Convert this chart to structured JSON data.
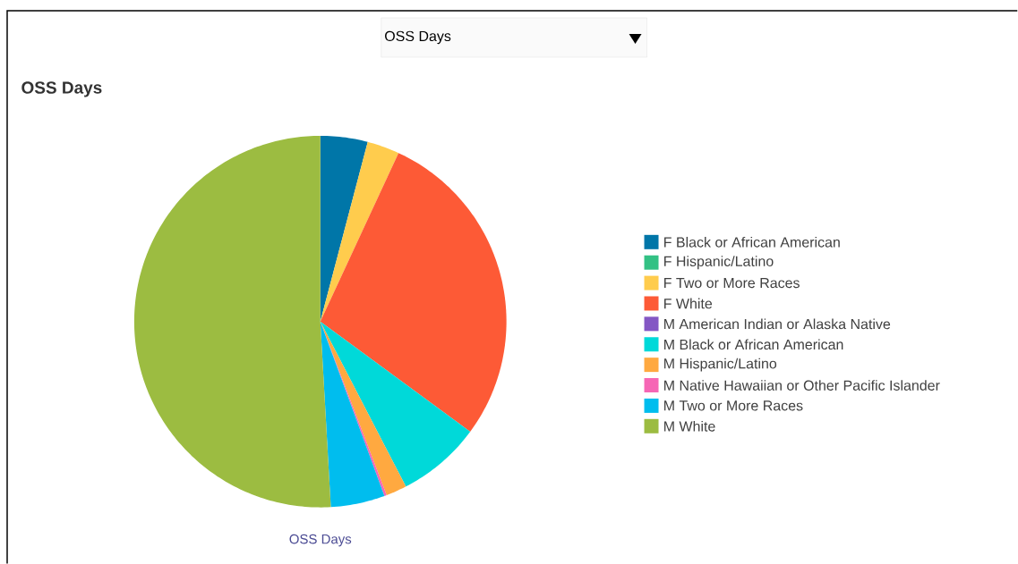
{
  "chart_data": {
    "type": "pie",
    "title": "OSS Days",
    "xlabel": "OSS Days",
    "annotations": [
      "OSS Days"
    ],
    "categories": [
      "F Black or African American",
      "F Hispanic/Latino",
      "F Two or More Races",
      "F White",
      "M American Indian or Alaska Native",
      "M Black or African American",
      "M Hispanic/Latino",
      "M Native Hawaiian or Other Pacific Islander",
      "M Two or More Races",
      "M White"
    ],
    "values": [
      4.1,
      0,
      2.8,
      28.2,
      0,
      7.3,
      1.8,
      0.2,
      4.7,
      50.9
    ],
    "colors": [
      "#0076a8",
      "#33c184",
      "#ffcc4d",
      "#fd5a36",
      "#8457c4",
      "#00d9d9",
      "#ffa940",
      "#f666b5",
      "#00bdee",
      "#9cbc41"
    ],
    "legend": "right"
  }
}
